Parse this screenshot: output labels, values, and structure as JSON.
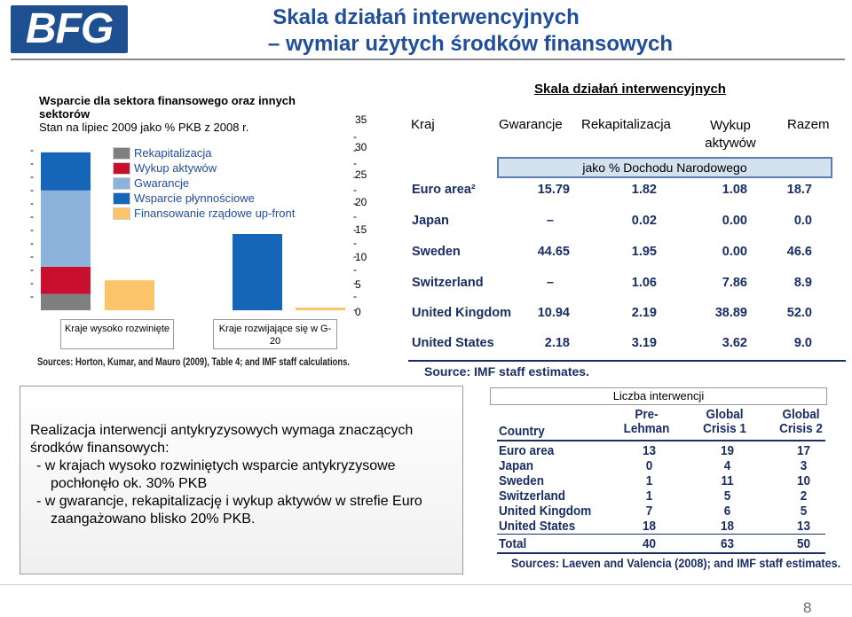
{
  "header": {
    "logo_text": "BFG",
    "title_line1": "Skala działań interwencyjnych",
    "title_line2": "– wymiar użytych środków finansowych"
  },
  "left_chart": {
    "heading_bold": "Wsparcie dla sektora finansowego oraz innych sektorów",
    "heading_normal": "Stan na lipiec 2009 jako % PKB z 2008 r.",
    "legend": [
      {
        "label": "Rekapitalizacja",
        "color": "#7f7f7f"
      },
      {
        "label": "Wykup aktywów",
        "color": "#c8102e"
      },
      {
        "label": "Gwarancje",
        "color": "#8db3dc"
      },
      {
        "label": "Wsparcie płynnościowe",
        "color": "#1565b8"
      },
      {
        "label": "Finansowanie rządowe up-front",
        "color": "#fbc36a"
      }
    ],
    "y_ticks": [
      "35",
      "30",
      "25",
      "20",
      "15",
      "10",
      "5",
      "0"
    ],
    "category_1": "Kraje wysoko rozwinięte",
    "category_2": "Kraje rozwijające się w G-20",
    "source": "Sources: Horton, Kumar, and Mauro (2009), Table 4; and IMF staff calculations."
  },
  "chart_data": {
    "type": "bar",
    "stacked": true,
    "title": "Wsparcie dla sektora finansowego oraz innych sektorów",
    "subtitle": "Stan na lipiec 2009 jako % PKB z 2008 r.",
    "ylim": [
      0,
      35
    ],
    "groups": [
      {
        "category": "Kraje wysoko rozwinięte",
        "stack": [
          {
            "name": "Rekapitalizacja",
            "value": 3.0
          },
          {
            "name": "Wykup aktywów",
            "value": 5.0
          },
          {
            "name": "Gwarancje",
            "value": 14.0
          },
          {
            "name": "Wsparcie płynnościowe",
            "value": 7.0
          }
        ],
        "upfront": {
          "name": "Finansowanie rządowe up-front",
          "value": 5.5
        }
      },
      {
        "category": "Kraje rozwijające się w G-20",
        "stack": [
          {
            "name": "Wsparcie płynnościowe",
            "value": 14.0
          }
        ],
        "upfront": {
          "name": "Finansowanie rządowe up-front",
          "value": 0.5
        }
      }
    ]
  },
  "right_table": {
    "title": "Skala działań interwencyjnych",
    "headers": [
      "Kraj",
      "Gwarancje",
      "Rekapitalizacja",
      "Wykup aktywów",
      "Razem"
    ],
    "subheader": "jako % Dochodu Narodowego",
    "rows": [
      {
        "country": "Euro area²",
        "g": "15.79",
        "r": "1.82",
        "w": "1.08",
        "t": "18.7"
      },
      {
        "country": "Japan",
        "g": "–",
        "r": "0.02",
        "w": "0.00",
        "t": "0.0"
      },
      {
        "country": "Sweden",
        "g": "44.65",
        "r": "1.95",
        "w": "0.00",
        "t": "46.6"
      },
      {
        "country": "Switzerland",
        "g": "–",
        "r": "1.06",
        "w": "7.86",
        "t": "8.9"
      },
      {
        "country": "United Kingdom",
        "g": "10.94",
        "r": "2.19",
        "w": "38.89",
        "t": "52.0"
      },
      {
        "country": "United States",
        "g": "2.18",
        "r": "3.19",
        "w": "3.62",
        "t": "9.0"
      }
    ],
    "source": "Source: IMF staff estimates."
  },
  "textbox": {
    "intro": "Realizacja interwencji antykryzysowych wymaga znaczących środków finansowych:",
    "bullet1": "-  w krajach wysoko rozwiniętych wsparcie antykryzysowe pochłonęło ok. 30% PKB",
    "bullet2": "-  w gwarancje, rekapitalizację i wykup aktywów w strefie Euro zaangażowano blisko 20% PKB."
  },
  "interventions_table": {
    "title": "Liczba interwencji",
    "headers": [
      "Country",
      "Pre-\nLehman",
      "Global\nCrisis 1",
      "Global\nCrisis 2"
    ],
    "rows": [
      {
        "country": "Euro area",
        "a": "13",
        "b": "19",
        "c": "17"
      },
      {
        "country": "Japan",
        "a": "0",
        "b": "4",
        "c": "3"
      },
      {
        "country": "Sweden",
        "a": "1",
        "b": "11",
        "c": "10"
      },
      {
        "country": "Switzerland",
        "a": "1",
        "b": "5",
        "c": "2"
      },
      {
        "country": "United Kingdom",
        "a": "7",
        "b": "6",
        "c": "5"
      },
      {
        "country": "United States",
        "a": "18",
        "b": "18",
        "c": "13"
      },
      {
        "country": "Total",
        "a": "40",
        "b": "63",
        "c": "50"
      }
    ],
    "source": "Sources: Laeven and Valencia (2008); and IMF staff estimates."
  },
  "footer": {
    "page_number": "8"
  }
}
